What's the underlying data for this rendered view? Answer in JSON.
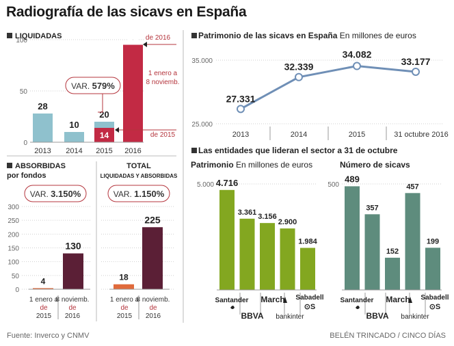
{
  "title": "Radiografía de las sicavs en España",
  "source": "Fuente: Inverco y CNMV",
  "credit": "BELÉN TRINCADO / CINCO DÍAS",
  "colors": {
    "teal_light": "#8fc1cd",
    "crimson": "#c22a44",
    "maroon": "#5b1f36",
    "orange": "#e06a3b",
    "green": "#83a720",
    "sage": "#5e8c7d",
    "line_blue": "#6f8fb6",
    "arrow_red": "#b4343c",
    "grid": "#cfcfcf"
  },
  "chart_data": [
    {
      "id": "liquidadas",
      "type": "bar",
      "title": "LIQUIDADAS",
      "categories": [
        "2013",
        "2014",
        "2015",
        "2016"
      ],
      "values": [
        28,
        10,
        20,
        95
      ],
      "overlay": {
        "category": "2015",
        "value": 14
      },
      "ylim": [
        0,
        100
      ],
      "yticks": [
        0,
        50,
        100
      ],
      "annotations": {
        "var_label": "VAR.",
        "var_value": "579%",
        "top_label": "de 2016",
        "mid_label": [
          "1 enero a",
          "8 noviemb."
        ],
        "bottom_label": "de 2015"
      }
    },
    {
      "id": "absorbidas",
      "type": "bar",
      "title": [
        "ABSORBIDAS",
        "por fondos"
      ],
      "categories": [
        [
          "1 enero a",
          "de",
          "2015"
        ],
        [
          "8 noviemb.",
          "de",
          "2016"
        ]
      ],
      "values": [
        4,
        130
      ],
      "ylim": [
        0,
        300
      ],
      "yticks": [
        0,
        50,
        100,
        150,
        200,
        250,
        300
      ],
      "annotations": {
        "var_label": "VAR.",
        "var_value": "3.150%"
      }
    },
    {
      "id": "total",
      "type": "bar",
      "title": [
        "TOTAL",
        "LIQUIDADAS Y ABSORBIDAS"
      ],
      "categories": [
        [
          "1 enero a",
          "de",
          "2015"
        ],
        [
          "8 noviemb.",
          "de",
          "2016"
        ]
      ],
      "values": [
        18,
        225
      ],
      "ylim": [
        0,
        300
      ],
      "annotations": {
        "var_label": "VAR.",
        "var_value": "1.150%"
      }
    },
    {
      "id": "patrimonio_sicavs",
      "type": "line",
      "title": "Patrimonio de las sicavs en España",
      "subtitle": "En millones de euros",
      "categories": [
        "2013",
        "2014",
        "2015",
        "31 octubre 2016"
      ],
      "values": [
        27331,
        32339,
        34082,
        33177
      ],
      "labels": [
        "27.331",
        "32.339",
        "34.082",
        "33.177"
      ],
      "ylim": [
        25000,
        35000
      ],
      "yticks": [
        "25.000",
        "35.000"
      ]
    },
    {
      "id": "patrimonio_entidades",
      "type": "bar",
      "section_title": "Las entidades que lideran el sector a 31 de octubre",
      "title": "Patrimonio",
      "subtitle": "En millones de euros",
      "categories": [
        "Santander",
        "BBVA",
        "March",
        "Bankinter",
        "Sabadell"
      ],
      "values": [
        4716,
        3361,
        3156,
        2900,
        1984
      ],
      "labels": [
        "4.716",
        "3.361",
        "3.156",
        "2.900",
        "1.984"
      ],
      "ylim": [
        0,
        5000
      ],
      "yticks": [
        "5.000"
      ]
    },
    {
      "id": "numero_sicavs",
      "type": "bar",
      "title": "Número de sicavs",
      "categories": [
        "Santander",
        "BBVA",
        "March",
        "Bankinter",
        "Sabadell"
      ],
      "values": [
        489,
        357,
        152,
        457,
        199
      ],
      "ylim": [
        0,
        500
      ],
      "yticks": [
        "500"
      ]
    }
  ]
}
